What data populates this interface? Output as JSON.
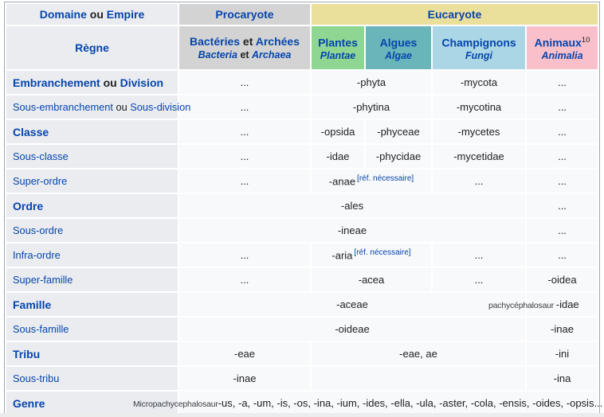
{
  "colors": {
    "link": "#0645ad",
    "text": "#202122",
    "label_bg": "#eaecf0",
    "cell_bg": "#f8f9fa",
    "procaryote_bg": "#d3d3d3",
    "eucaryote_bg": "#ebdf9c",
    "border": "#a2a9b1"
  },
  "table": {
    "header": {
      "corner": [
        {
          "t": "Domaine"
        },
        {
          "t": " ou "
        },
        {
          "t": "Empire"
        }
      ],
      "regne": "Règne",
      "procaryote": "Procaryote",
      "eucaryote": "Eucaryote",
      "prokaryote_sub": {
        "line1": [
          {
            "t": "Bactéries"
          },
          {
            "t": " et "
          },
          {
            "t": "Archées"
          }
        ],
        "line2": [
          {
            "t": "Bacteria"
          },
          {
            "t": " et "
          },
          {
            "t": "Archaea"
          }
        ]
      },
      "groups": [
        {
          "name": "Plantes",
          "latin": "Plantae",
          "sup": "",
          "color": "#8fd693"
        },
        {
          "name": "Algues",
          "latin": "Algae",
          "sup": "",
          "color": "#69b5ba"
        },
        {
          "name": "Champignons",
          "latin": "Fungi",
          "sup": "",
          "color": "#aad6e6"
        },
        {
          "name": "Animaux",
          "latin": "Animalia",
          "sup": "10",
          "color": "#f9c0cb"
        }
      ]
    },
    "ref_needed": "[réf. nécessaire]",
    "rows": [
      {
        "key": "embranchement",
        "bold": true,
        "label": [
          {
            "t": "Embranchement",
            "link": true
          },
          {
            "t": " ou ",
            "link": false
          },
          {
            "t": "Division",
            "link": true
          }
        ],
        "cells": [
          {
            "span": 1,
            "text": "..."
          },
          {
            "span": 2,
            "text": "-phyta"
          },
          {
            "span": 1,
            "text": "-mycota"
          },
          {
            "span": 1,
            "text": "..."
          }
        ]
      },
      {
        "key": "sous-embranchement",
        "bold": false,
        "label": [
          {
            "t": "Sous-embranchement",
            "link": true
          },
          {
            "t": " ou ",
            "link": false
          },
          {
            "t": "Sous-division",
            "link": true
          }
        ],
        "cells": [
          {
            "span": 1,
            "text": "..."
          },
          {
            "span": 2,
            "text": "-phytina"
          },
          {
            "span": 1,
            "text": "-mycotina"
          },
          {
            "span": 1,
            "text": "..."
          }
        ]
      },
      {
        "key": "classe",
        "bold": true,
        "label": [
          {
            "t": "Classe",
            "link": true
          }
        ],
        "cells": [
          {
            "span": 1,
            "text": "..."
          },
          {
            "span": 1,
            "text": "-opsida"
          },
          {
            "span": 1,
            "text": "-phyceae"
          },
          {
            "span": 1,
            "text": "-mycetes"
          },
          {
            "span": 1,
            "text": "..."
          }
        ]
      },
      {
        "key": "sous-classe",
        "bold": false,
        "label": [
          {
            "t": "Sous-classe",
            "link": true
          }
        ],
        "cells": [
          {
            "span": 1,
            "text": "..."
          },
          {
            "span": 1,
            "text": "-idae"
          },
          {
            "span": 1,
            "text": "-phycidae"
          },
          {
            "span": 1,
            "text": "-mycetidae"
          },
          {
            "span": 1,
            "text": "..."
          }
        ]
      },
      {
        "key": "super-ordre",
        "bold": false,
        "label": [
          {
            "t": "Super-ordre",
            "link": true
          }
        ],
        "cells": [
          {
            "span": 1,
            "text": "..."
          },
          {
            "span": 2,
            "text": "-anae",
            "ref": true
          },
          {
            "span": 1,
            "text": "..."
          },
          {
            "span": 1,
            "text": "..."
          }
        ]
      },
      {
        "key": "ordre",
        "bold": true,
        "label": [
          {
            "t": "Ordre",
            "link": true
          }
        ],
        "cells": [
          {
            "span": 4,
            "text": "-ales"
          },
          {
            "span": 1,
            "text": "..."
          }
        ]
      },
      {
        "key": "sous-ordre",
        "bold": false,
        "label": [
          {
            "t": "Sous-ordre",
            "link": true
          }
        ],
        "cells": [
          {
            "span": 4,
            "text": "-ineae"
          },
          {
            "span": 1,
            "text": "..."
          }
        ]
      },
      {
        "key": "infra-ordre",
        "bold": false,
        "label": [
          {
            "t": "Infra-ordre",
            "link": true
          }
        ],
        "cells": [
          {
            "span": 1,
            "text": "..."
          },
          {
            "span": 2,
            "text": "-aria",
            "ref": true
          },
          {
            "span": 1,
            "text": "..."
          },
          {
            "span": 1,
            "text": "..."
          }
        ]
      },
      {
        "key": "super-famille",
        "bold": false,
        "label": [
          {
            "t": "Super-famille",
            "link": true
          }
        ],
        "cells": [
          {
            "span": 1,
            "text": "..."
          },
          {
            "span": 2,
            "text": "-acea"
          },
          {
            "span": 1,
            "text": "..."
          },
          {
            "span": 1,
            "text": "-oidea"
          }
        ]
      },
      {
        "key": "famille",
        "bold": true,
        "label": [
          {
            "t": "Famille",
            "link": true
          }
        ],
        "cells": [
          {
            "span": 4,
            "text": "-aceae"
          },
          {
            "span": 1,
            "text": "-idae",
            "small": "pachycéphalosaur ",
            "shift": -50
          }
        ]
      },
      {
        "key": "sous-famille",
        "bold": false,
        "label": [
          {
            "t": "Sous-famille",
            "link": true
          }
        ],
        "cells": [
          {
            "span": 4,
            "text": "-oideae"
          },
          {
            "span": 1,
            "text": "-inae"
          }
        ]
      },
      {
        "key": "tribu",
        "bold": true,
        "label": [
          {
            "t": "Tribu",
            "link": true
          }
        ],
        "cells": [
          {
            "span": 1,
            "text": "-eae"
          },
          {
            "span": 3,
            "text": "-eae, ae"
          },
          {
            "span": 1,
            "text": "-ini"
          }
        ]
      },
      {
        "key": "sous-tribu",
        "bold": false,
        "label": [
          {
            "t": "Sous-tribu",
            "link": true
          }
        ],
        "cells": [
          {
            "span": 1,
            "text": "-inae"
          },
          {
            "span": 3,
            "text": ""
          },
          {
            "span": 1,
            "text": "-ina"
          }
        ]
      },
      {
        "key": "genre",
        "bold": true,
        "label": [
          {
            "t": "Genre",
            "link": true
          }
        ],
        "cells": [
          {
            "span": 5,
            "text": "-us, -a, -um, -is, -os, -ina, -ium, -ides, -ella, -ula, -aster, -cola, -ensis, -oides, -opsis...",
            "small": "Micropachycephalosaur",
            "shift": -60
          }
        ]
      }
    ]
  }
}
